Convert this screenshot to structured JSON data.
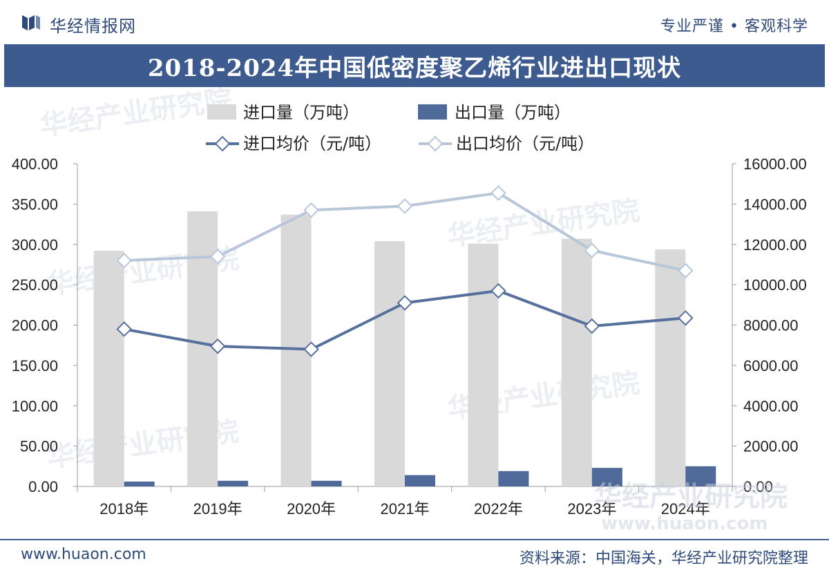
{
  "header": {
    "brand": "华经情报网",
    "slogan": "专业严谨 • 客观科学"
  },
  "title": "2018-2024年中国低密度聚乙烯行业进出口现状",
  "footer": {
    "website": "www.huaon.com",
    "source": "资料来源：中国海关，华经产业研究院整理"
  },
  "watermark": {
    "text": "华经产业研究院",
    "url": "www.huaon.com"
  },
  "colors": {
    "title_bg": "#3e5b8f",
    "import_bar": "#d9d9d9",
    "export_bar": "#4f6a99",
    "import_price_line": "#56709e",
    "export_price_line": "#b8c6d9"
  },
  "chart_data": {
    "type": "bar",
    "title": "2018-2024年中国低密度聚乙烯行业进出口现状",
    "categories": [
      "2018年",
      "2019年",
      "2020年",
      "2021年",
      "2022年",
      "2023年",
      "2024年"
    ],
    "series": [
      {
        "name": "进口量（万吨）",
        "type": "bar",
        "axis": "left",
        "values": [
          292,
          341,
          337,
          304,
          301,
          307,
          294
        ]
      },
      {
        "name": "出口量（万吨）",
        "type": "bar",
        "axis": "left",
        "values": [
          6,
          7,
          7,
          14,
          19,
          23,
          25
        ]
      },
      {
        "name": "进口均价（元/吨）",
        "type": "line",
        "axis": "right",
        "values": [
          7800,
          6950,
          6800,
          9100,
          9700,
          7950,
          8350
        ]
      },
      {
        "name": "出口均价（元/吨）",
        "type": "line",
        "axis": "right",
        "values": [
          11200,
          11400,
          13700,
          13900,
          14550,
          11700,
          10700
        ]
      }
    ],
    "left_axis": {
      "ylim": [
        0,
        400
      ],
      "ticks": [
        "0.00",
        "50.00",
        "100.00",
        "150.00",
        "200.00",
        "250.00",
        "300.00",
        "350.00",
        "400.00"
      ]
    },
    "right_axis": {
      "ylim": [
        0,
        16000
      ],
      "ticks": [
        "0.00",
        "2000.00",
        "4000.00",
        "6000.00",
        "8000.00",
        "10000.00",
        "12000.00",
        "14000.00",
        "16000.00"
      ]
    },
    "legend_position": "top"
  }
}
